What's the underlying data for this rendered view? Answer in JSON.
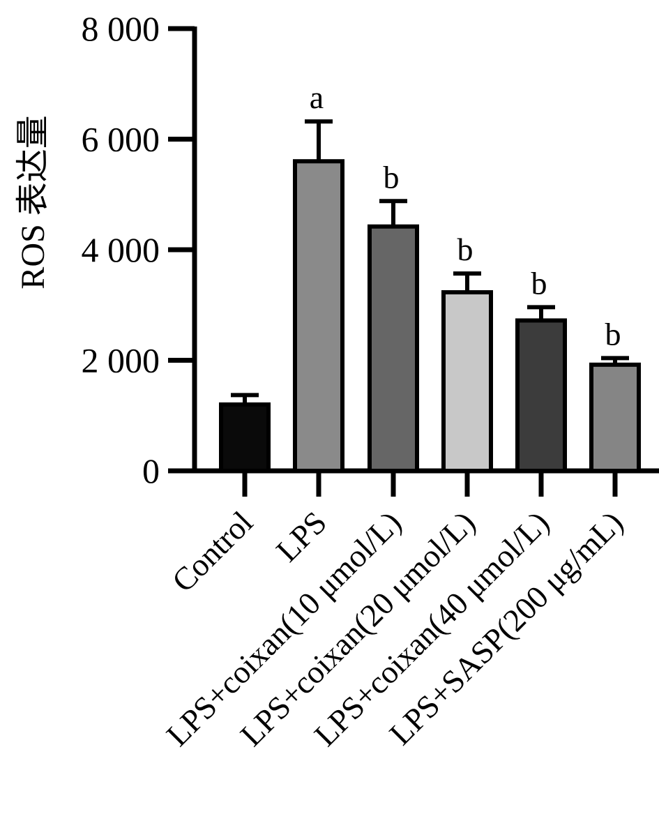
{
  "chart_data": {
    "type": "bar",
    "title": "",
    "ylabel": "ROS 表达量",
    "xlabel": "",
    "ylim": [
      0,
      8000
    ],
    "yticks": [
      0,
      2000,
      4000,
      6000,
      8000
    ],
    "ytick_labels": [
      "0",
      "2 000",
      "4 000",
      "6 000",
      "8 000"
    ],
    "grid": false,
    "legend": "none",
    "categories": [
      "Control",
      "LPS",
      "LPS+coixan(10 μmol/L)",
      "LPS+coixan(20 μmol/L)",
      "LPS+coixan(40 μmol/L)",
      "LPS+SASP(200 μg/mL)"
    ],
    "values": [
      1200,
      5600,
      4420,
      3230,
      2720,
      1920
    ],
    "errors": [
      170,
      720,
      460,
      340,
      240,
      120
    ],
    "significance": [
      "",
      "a",
      "b",
      "b",
      "b",
      "b"
    ],
    "bar_colors": [
      "#0a0a0a",
      "#8a8a8a",
      "#666666",
      "#c8c8c8",
      "#3c3c3c",
      "#858585"
    ]
  }
}
